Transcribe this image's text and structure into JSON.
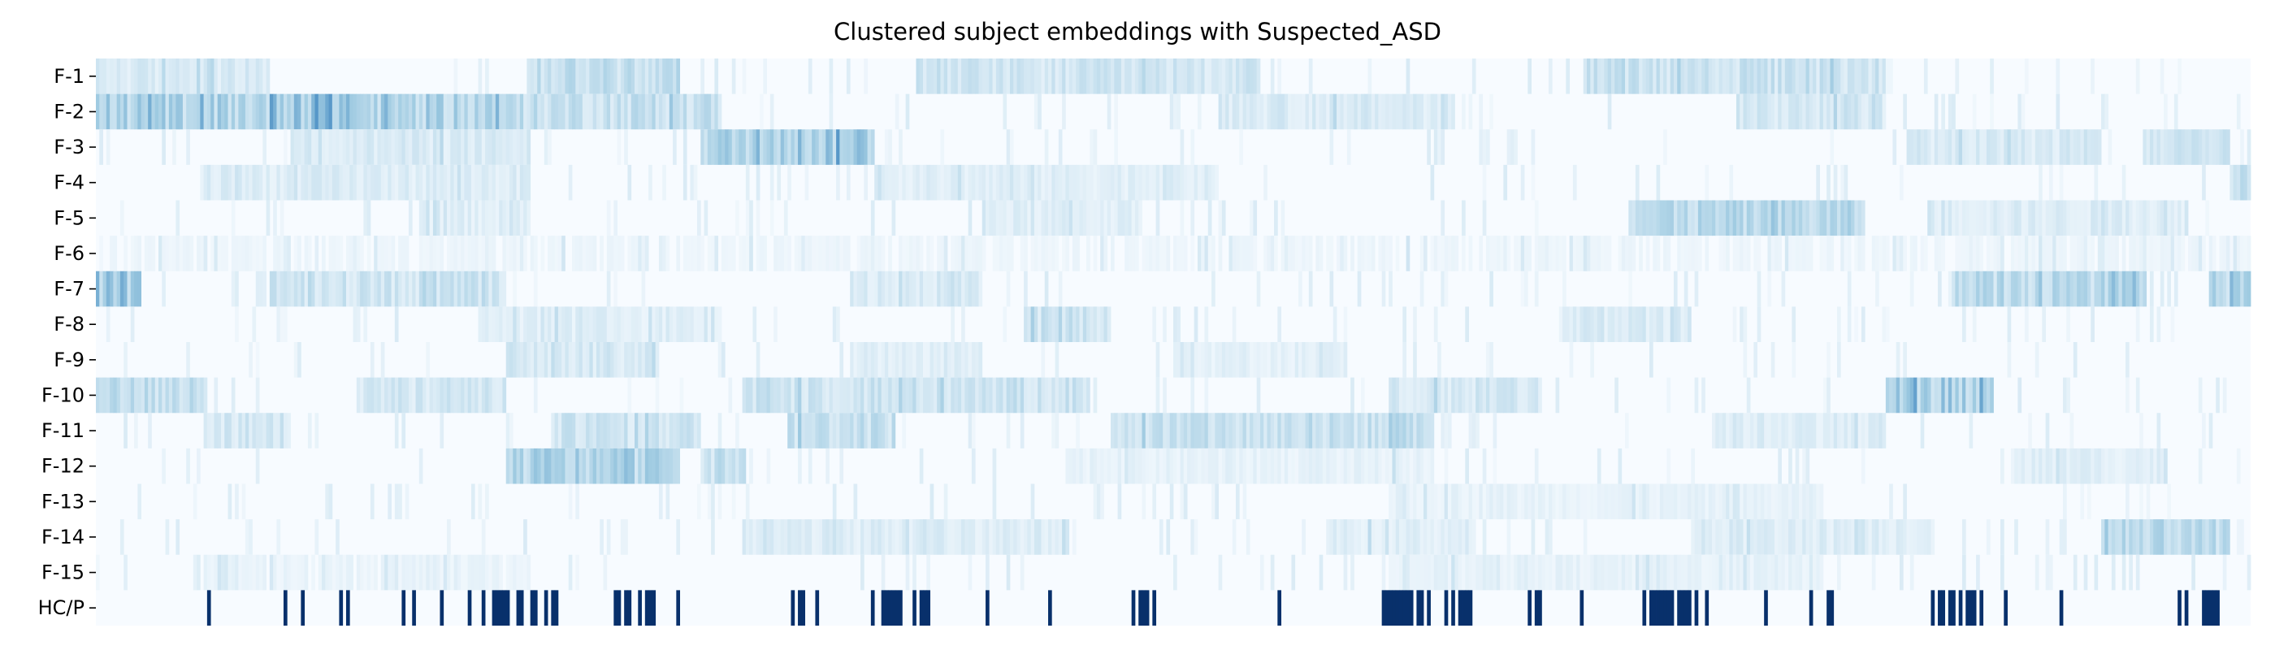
{
  "chart_data": {
    "type": "heatmap",
    "title": "Clustered subject embeddings with Suspected_ASD",
    "xlabel": "",
    "ylabel": "",
    "rows": [
      "F-1",
      "F-2",
      "F-3",
      "F-4",
      "F-5",
      "F-6",
      "F-7",
      "F-8",
      "F-9",
      "F-10",
      "F-11",
      "F-12",
      "F-13",
      "F-14",
      "F-15",
      "HC/P"
    ],
    "n_columns": 620,
    "colormap": "Blues",
    "value_range": [
      0,
      1
    ],
    "colors": {
      "low": "#f7fbff",
      "mid": "#9ecae1",
      "high": "#2171b5",
      "label_on": "#08306b",
      "label_off": "#f7fbff"
    },
    "feature_profiles": [
      {
        "row": "F-1",
        "spans": [
          [
            0,
            0.08,
            0.18
          ],
          [
            0.2,
            0.27,
            0.3
          ],
          [
            0.38,
            0.54,
            0.22
          ],
          [
            0.69,
            0.83,
            0.26
          ]
        ]
      },
      {
        "row": "F-2",
        "spans": [
          [
            0,
            0.0,
            0.22
          ],
          [
            0.0,
            0.19,
            0.42
          ],
          [
            0.08,
            0.12,
            0.58
          ],
          [
            0.19,
            0.29,
            0.3
          ],
          [
            0.52,
            0.63,
            0.18
          ],
          [
            0.76,
            0.83,
            0.2
          ]
        ]
      },
      {
        "row": "F-3",
        "spans": [
          [
            0.09,
            0.2,
            0.18
          ],
          [
            0.28,
            0.36,
            0.42
          ],
          [
            0.3,
            0.36,
            0.5
          ],
          [
            0.84,
            0.93,
            0.18
          ],
          [
            0.95,
            0.99,
            0.22
          ]
        ]
      },
      {
        "row": "F-4",
        "spans": [
          [
            0.05,
            0.2,
            0.16
          ],
          [
            0.36,
            0.52,
            0.14
          ],
          [
            0.99,
            1.0,
            0.3
          ]
        ]
      },
      {
        "row": "F-5",
        "spans": [
          [
            0.15,
            0.2,
            0.14
          ],
          [
            0.41,
            0.48,
            0.14
          ],
          [
            0.71,
            0.82,
            0.36
          ],
          [
            0.85,
            0.97,
            0.16
          ]
        ]
      },
      {
        "row": "F-6",
        "spans": [
          [
            0.0,
            1.0,
            0.06
          ]
        ]
      },
      {
        "row": "F-7",
        "spans": [
          [
            0.0,
            0.02,
            0.5
          ],
          [
            0.08,
            0.19,
            0.24
          ],
          [
            0.35,
            0.41,
            0.18
          ],
          [
            0.86,
            0.95,
            0.36
          ],
          [
            0.98,
            1.0,
            0.4
          ]
        ]
      },
      {
        "row": "F-8",
        "spans": [
          [
            0.18,
            0.29,
            0.14
          ],
          [
            0.43,
            0.47,
            0.24
          ],
          [
            0.68,
            0.74,
            0.18
          ]
        ]
      },
      {
        "row": "F-9",
        "spans": [
          [
            0.19,
            0.26,
            0.2
          ],
          [
            0.35,
            0.41,
            0.14
          ],
          [
            0.5,
            0.58,
            0.12
          ]
        ]
      },
      {
        "row": "F-10",
        "spans": [
          [
            0.0,
            0.05,
            0.32
          ],
          [
            0.12,
            0.19,
            0.22
          ],
          [
            0.3,
            0.46,
            0.26
          ],
          [
            0.6,
            0.67,
            0.2
          ],
          [
            0.83,
            0.88,
            0.46
          ]
        ]
      },
      {
        "row": "F-11",
        "spans": [
          [
            0.05,
            0.09,
            0.2
          ],
          [
            0.21,
            0.28,
            0.24
          ],
          [
            0.32,
            0.37,
            0.3
          ],
          [
            0.47,
            0.62,
            0.28
          ],
          [
            0.75,
            0.83,
            0.16
          ]
        ]
      },
      {
        "row": "F-12",
        "spans": [
          [
            0.19,
            0.27,
            0.42
          ],
          [
            0.28,
            0.3,
            0.3
          ],
          [
            0.45,
            0.62,
            0.1
          ],
          [
            0.89,
            0.96,
            0.14
          ]
        ]
      },
      {
        "row": "F-13",
        "spans": [
          [
            0.6,
            0.8,
            0.1
          ]
        ]
      },
      {
        "row": "F-14",
        "spans": [
          [
            0.3,
            0.45,
            0.16
          ],
          [
            0.57,
            0.64,
            0.14
          ],
          [
            0.74,
            0.85,
            0.16
          ],
          [
            0.93,
            0.99,
            0.34
          ]
        ]
      },
      {
        "row": "F-15",
        "spans": [
          [
            0.05,
            0.2,
            0.08
          ],
          [
            0.6,
            0.8,
            0.1
          ]
        ]
      }
    ],
    "label_row": {
      "row": "HC/P",
      "positive_spans": [
        [
          0.183,
          0.205
        ],
        [
          0.24,
          0.261
        ],
        [
          0.364,
          0.387
        ],
        [
          0.596,
          0.618
        ],
        [
          0.624,
          0.638
        ],
        [
          0.717,
          0.742
        ],
        [
          0.852,
          0.872
        ],
        [
          0.976,
          0.987
        ]
      ],
      "positive_density_elsewhere": 0.06
    }
  }
}
